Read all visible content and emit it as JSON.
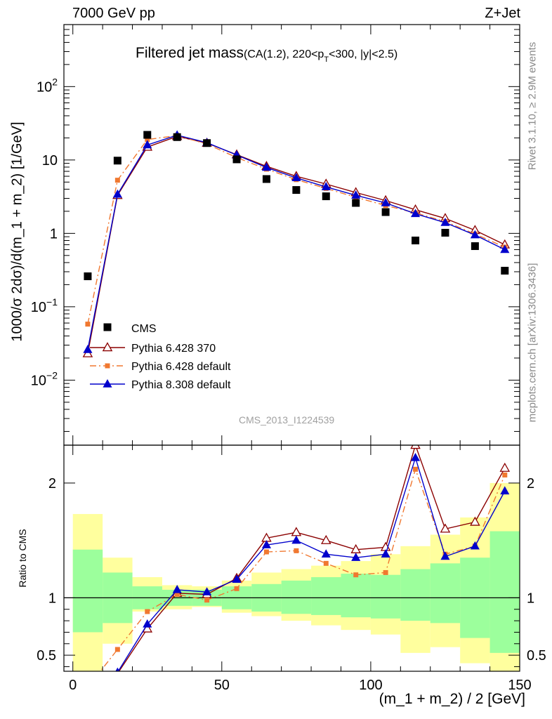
{
  "header": {
    "energy_label": "7000 GeV pp",
    "process_label": "Z+Jet"
  },
  "title": {
    "main": "Filtered jet mass",
    "sub_pre": "(CA(1.2), 220<p",
    "sub_sub": "T",
    "sub_post": "<300, |y|<2.5)"
  },
  "side_text": {
    "rivet": "Rivet 3.1.10, ≥ 2.9M events",
    "mcplots": "mcplots.cern.ch [arXiv:1306.3436]"
  },
  "watermark": "CMS_2013_I1224539",
  "axes": {
    "ylabel_main": "1000/σ 2dσ)/d(m_1 + m_2) [1/GeV]",
    "ylabel_ratio": "Ratio to CMS",
    "xlabel": "(m_1 + m_2) / 2 [GeV]",
    "x_ticks": [
      "0",
      "50",
      "100",
      "150"
    ],
    "y_main_tick_labels": [
      {
        "base": "10",
        "exp": "−2",
        "value": 0.01
      },
      {
        "base": "10",
        "exp": "−1",
        "value": 0.1
      },
      {
        "base": "1",
        "exp": "",
        "value": 1
      },
      {
        "base": "10",
        "exp": "",
        "value": 10
      },
      {
        "base": "10",
        "exp": "2",
        "value": 100
      }
    ],
    "y_ratio_tick_labels": [
      "0.5",
      "1",
      "2"
    ]
  },
  "chart_data": {
    "type": "scatter",
    "x_range": [
      -3,
      150
    ],
    "y_main_range": [
      0.0013,
      700
    ],
    "y_main_scale": "log",
    "y_ratio_range": [
      0.36,
      2.33
    ],
    "legend_placement": "bottom-left",
    "x": [
      5,
      15,
      25,
      35,
      45,
      55,
      65,
      75,
      85,
      95,
      105,
      115,
      125,
      135,
      145
    ],
    "bin_edges": [
      0,
      10,
      20,
      30,
      40,
      50,
      60,
      70,
      80,
      90,
      100,
      110,
      120,
      130,
      140,
      150
    ],
    "data": {
      "name": "CMS",
      "color": "#000000",
      "values": [
        0.26,
        9.8,
        22,
        20.5,
        17,
        10.2,
        5.5,
        3.9,
        3.2,
        2.6,
        1.95,
        0.8,
        1.02,
        0.67,
        0.31
      ],
      "ratio_band_inner": [
        [
          0.7,
          1.42
        ],
        [
          0.78,
          1.22
        ],
        [
          0.9,
          1.1
        ],
        [
          0.93,
          1.07
        ],
        [
          0.93,
          1.07
        ],
        [
          0.9,
          1.1
        ],
        [
          0.88,
          1.12
        ],
        [
          0.86,
          1.15
        ],
        [
          0.85,
          1.18
        ],
        [
          0.83,
          1.21
        ],
        [
          0.82,
          1.2
        ],
        [
          0.8,
          1.25
        ],
        [
          0.78,
          1.3
        ],
        [
          0.65,
          1.35
        ],
        [
          0.52,
          1.58
        ]
      ],
      "ratio_band_outer": [
        [
          0.0,
          1.73
        ],
        [
          0.6,
          1.35
        ],
        [
          0.88,
          1.18
        ],
        [
          0.9,
          1.11
        ],
        [
          0.92,
          1.1
        ],
        [
          0.87,
          1.15
        ],
        [
          0.84,
          1.22
        ],
        [
          0.8,
          1.25
        ],
        [
          0.76,
          1.28
        ],
        [
          0.72,
          1.32
        ],
        [
          0.68,
          1.38
        ],
        [
          0.52,
          1.45
        ],
        [
          0.57,
          1.55
        ],
        [
          0.43,
          1.7
        ],
        [
          0.33,
          2.0
        ]
      ]
    },
    "series": [
      {
        "name": "Pythia 6.428 370",
        "color": "#8b0000",
        "line": "solid",
        "marker": "open-triangle",
        "values": [
          0.023,
          3.3,
          15,
          21,
          17,
          11.8,
          8.2,
          6.0,
          4.7,
          3.6,
          2.8,
          2.1,
          1.6,
          1.1,
          0.7
        ],
        "ratio": [
          0.09,
          0.34,
          0.73,
          1.04,
          1.03,
          1.17,
          1.52,
          1.57,
          1.5,
          1.42,
          1.44,
          2.33,
          1.6,
          1.66,
          2.13
        ]
      },
      {
        "name": "Pythia 6.428 default",
        "color": "#f07830",
        "line": "dashdot",
        "marker": "filled-square",
        "values": [
          0.058,
          5.3,
          19,
          21.5,
          16.5,
          10.8,
          7.5,
          5.4,
          4.1,
          3.1,
          2.4,
          1.9,
          1.45,
          0.98,
          0.65
        ],
        "ratio": [
          0.22,
          0.55,
          0.88,
          1.03,
          0.98,
          1.08,
          1.4,
          1.41,
          1.3,
          1.2,
          1.22,
          2.12,
          1.38,
          1.45,
          2.07
        ]
      },
      {
        "name": "Pythia 8.308 default",
        "color": "#0000cc",
        "line": "solid",
        "marker": "filled-triangle",
        "values": [
          0.026,
          3.4,
          16,
          21.8,
          17.2,
          11.7,
          7.9,
          5.7,
          4.3,
          3.3,
          2.6,
          1.85,
          1.4,
          0.95,
          0.6
        ],
        "ratio": [
          0.1,
          0.35,
          0.77,
          1.07,
          1.05,
          1.16,
          1.46,
          1.5,
          1.38,
          1.35,
          1.38,
          2.22,
          1.36,
          1.45,
          1.93
        ]
      }
    ]
  }
}
